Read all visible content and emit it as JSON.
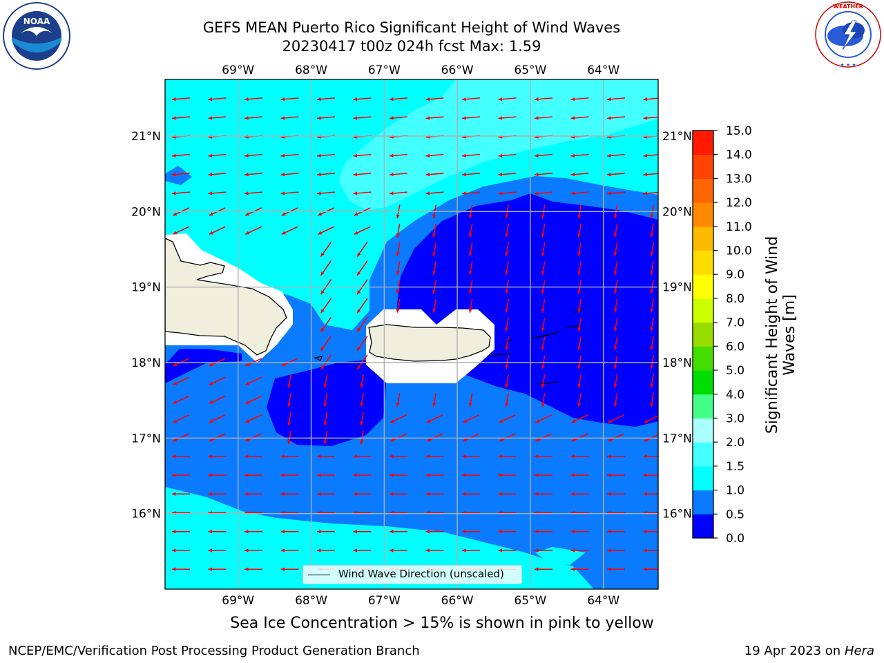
{
  "title": {
    "line1": "GEFS MEAN Puerto Rico Significant Height of Wind Waves",
    "line2": "20230417 t00z 024h fcst   Max: 1.59"
  },
  "logos": {
    "left": "NOAA",
    "left_ring_text": "NATIONAL OCEANIC AND ATMOSPHERIC ADMINISTRATION · U.S. DEPARTMENT OF COMMERCE",
    "right_ring_text": "NATIONAL WEATHER SERVICE"
  },
  "axes": {
    "lon_labels": [
      "69°W",
      "68°W",
      "67°W",
      "66°W",
      "65°W",
      "64°W"
    ],
    "lon_values": [
      -69,
      -68,
      -67,
      -66,
      -65,
      -64
    ],
    "lat_labels": [
      "21°N",
      "20°N",
      "19°N",
      "18°N",
      "17°N",
      "16°N"
    ],
    "lat_values": [
      21,
      20,
      19,
      18,
      17,
      16
    ],
    "lon_range": [
      -70,
      -63.25
    ],
    "lat_range": [
      15,
      21.75
    ],
    "grid": true
  },
  "colorbar": {
    "label": "Significant Height of Wind Waves [m]",
    "ticks": [
      "0.0",
      "0.5",
      "1.0",
      "1.5",
      "2.0",
      "3.0",
      "4.0",
      "5.0",
      "6.0",
      "7.0",
      "8.0",
      "9.0",
      "10.0",
      "11.0",
      "12.0",
      "13.0",
      "14.0",
      "15.0"
    ],
    "colors": [
      "#0000ff",
      "#0a7aff",
      "#00ffff",
      "#43ffff",
      "#aaffff",
      "#44ff88",
      "#00dd00",
      "#44dd00",
      "#99dd00",
      "#ccff00",
      "#ffff00",
      "#ffdd00",
      "#ffbb00",
      "#ff8800",
      "#ff6600",
      "#ff4400",
      "#ff1a00"
    ]
  },
  "legend": {
    "label": "Wind Wave Direction (unscaled)"
  },
  "sea_ice_note": "Sea Ice Concentration > 15% is shown in pink to yellow",
  "footer": {
    "credit": "NCEP/EMC/Verification Post Processing Product Generation Branch",
    "date_prefix": "19 Apr 2023 on",
    "machine": "Hera"
  },
  "colors": {
    "land": "#f0eedc",
    "arrow": "#ff0000",
    "band_0_0p5": "#0000ff",
    "band_0p5_1": "#0a7aff",
    "band_1_1p5": "#00ffff",
    "band_1p5_2": "#43ffff"
  }
}
